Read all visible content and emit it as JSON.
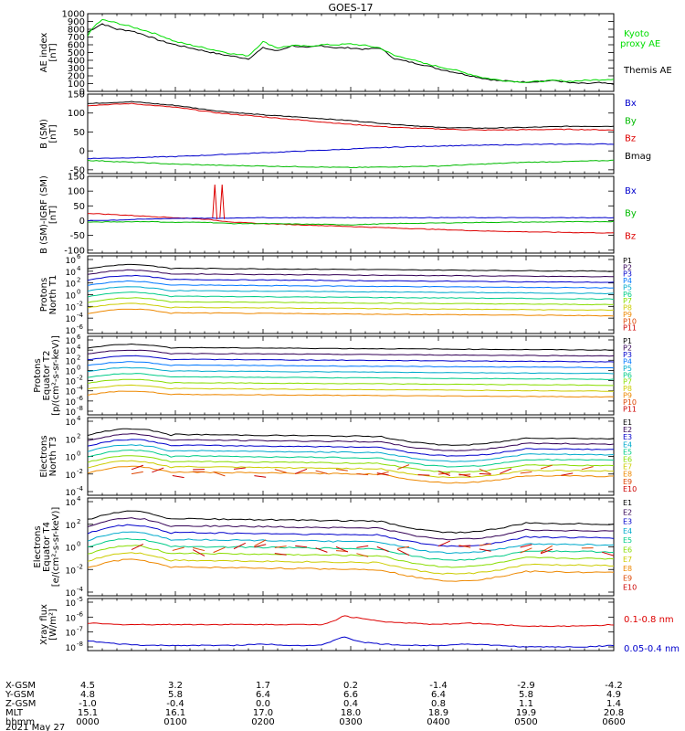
{
  "title": "GOES-17",
  "chart_data": [
    {
      "panel": "ae",
      "type": "line",
      "ylabel": [
        "AE index",
        "[nT]"
      ],
      "ylim": [
        0,
        1000
      ],
      "yticks": [
        "0",
        "100",
        "200",
        "300",
        "400",
        "500",
        "600",
        "700",
        "800",
        "900",
        "1000"
      ],
      "legend": [
        {
          "text": "Kyoto",
          "color": "#00dd00"
        },
        {
          "text": "proxy AE",
          "color": "#00dd00"
        },
        {
          "text": "Themis AE",
          "color": "#000000"
        }
      ],
      "x": [
        0,
        5,
        10,
        20,
        30,
        40,
        50,
        60,
        70,
        80,
        90,
        100,
        110,
        120,
        130,
        140,
        150,
        160,
        170,
        180,
        190,
        200,
        210,
        220,
        230,
        240,
        250,
        260,
        270,
        280,
        290,
        300,
        310,
        320,
        330,
        340,
        350,
        360
      ],
      "series": [
        {
          "name": "Themis AE",
          "color": "#000000",
          "values": [
            760,
            820,
            870,
            800,
            780,
            720,
            650,
            600,
            560,
            520,
            480,
            450,
            420,
            560,
            520,
            590,
            560,
            590,
            560,
            560,
            540,
            560,
            420,
            380,
            340,
            290,
            250,
            210,
            170,
            140,
            130,
            120,
            130,
            140,
            110,
            100,
            110,
            90
          ]
        },
        {
          "name": "Kyoto proxy AE",
          "color": "#00dd00",
          "values": [
            720,
            850,
            920,
            880,
            830,
            780,
            720,
            640,
            600,
            560,
            520,
            480,
            460,
            640,
            560,
            590,
            580,
            600,
            600,
            610,
            590,
            560,
            460,
            420,
            360,
            320,
            280,
            230,
            180,
            150,
            130,
            120,
            130,
            140,
            130,
            140,
            150,
            160
          ]
        }
      ]
    },
    {
      "panel": "bsm",
      "type": "line",
      "ylabel": [
        "B (SM)",
        "[nT]"
      ],
      "ylim": [
        -60,
        150
      ],
      "yticks": [
        "-50",
        "0",
        "50",
        "100",
        "150"
      ],
      "yticks_values": [
        -50,
        0,
        50,
        100,
        150
      ],
      "legend": [
        {
          "text": "Bx",
          "color": "#0000cc"
        },
        {
          "text": "By",
          "color": "#00bb00"
        },
        {
          "text": "Bz",
          "color": "#dd0000"
        },
        {
          "text": "Bmag",
          "color": "#000000"
        }
      ],
      "x": [
        0,
        30,
        60,
        90,
        120,
        150,
        180,
        210,
        240,
        270,
        300,
        330,
        360
      ],
      "series": [
        {
          "name": "Bmag",
          "color": "#000000",
          "values": [
            125,
            130,
            120,
            105,
            95,
            88,
            80,
            70,
            62,
            60,
            62,
            65,
            65
          ]
        },
        {
          "name": "Bz",
          "color": "#dd0000",
          "values": [
            120,
            125,
            115,
            100,
            90,
            80,
            70,
            62,
            58,
            55,
            56,
            57,
            55
          ]
        },
        {
          "name": "Bx",
          "color": "#0000cc",
          "values": [
            -20,
            -18,
            -15,
            -10,
            -5,
            0,
            5,
            10,
            13,
            15,
            17,
            18,
            18
          ]
        },
        {
          "name": "By",
          "color": "#00bb00",
          "values": [
            -25,
            -30,
            -35,
            -38,
            -40,
            -42,
            -44,
            -42,
            -40,
            -35,
            -30,
            -28,
            -25
          ]
        }
      ]
    },
    {
      "panel": "bmigrf",
      "type": "line",
      "ylabel": [
        "B (SM)-IGRF (SM)",
        "[nT]"
      ],
      "ylim": [
        -110,
        150
      ],
      "yticks": [
        "-100",
        "-50",
        "0",
        "50",
        "100",
        "150"
      ],
      "yticks_values": [
        -100,
        -50,
        0,
        50,
        100,
        150
      ],
      "legend": [
        {
          "text": "Bx",
          "color": "#0000cc"
        },
        {
          "text": "By",
          "color": "#00bb00"
        },
        {
          "text": "Bz",
          "color": "#dd0000"
        }
      ],
      "x": [
        0,
        20,
        40,
        60,
        80,
        90,
        100,
        110,
        120,
        150,
        180,
        210,
        240,
        270,
        300,
        330,
        360
      ],
      "series": [
        {
          "name": "Bz",
          "color": "#dd0000",
          "values": [
            25,
            20,
            15,
            10,
            5,
            0,
            -5,
            -8,
            -10,
            -15,
            -20,
            -25,
            -30,
            -35,
            -38,
            -40,
            -42
          ]
        },
        {
          "name": "Bx",
          "color": "#0000cc",
          "values": [
            0,
            2,
            5,
            8,
            8,
            8,
            9,
            10,
            10,
            10,
            10,
            10,
            10,
            10,
            10,
            10,
            10
          ]
        },
        {
          "name": "By",
          "color": "#00bb00",
          "values": [
            -5,
            -4,
            -3,
            -6,
            -5,
            -8,
            -10,
            -10,
            -10,
            -12,
            -14,
            -10,
            -8,
            -6,
            -5,
            -4,
            -3
          ]
        }
      ]
    },
    {
      "panel": "protons_t1",
      "type": "line",
      "ylabel": [
        "Protons",
        "North T1"
      ],
      "yticks": [
        "10",
        "10",
        "10",
        "10",
        "10",
        "10",
        "10"
      ],
      "yexp": [
        "-6",
        "-4",
        "-2",
        "0",
        "2",
        "4",
        "6"
      ],
      "legend": [
        {
          "text": "P1",
          "color": "#000000"
        },
        {
          "text": "P2",
          "color": "#330055"
        },
        {
          "text": "P3",
          "color": "#0000cc"
        },
        {
          "text": "P4",
          "color": "#0077ff"
        },
        {
          "text": "P5",
          "color": "#00aacc"
        },
        {
          "text": "P6",
          "color": "#00cc88"
        },
        {
          "text": "P7",
          "color": "#88dd00"
        },
        {
          "text": "P8",
          "color": "#cccc00"
        },
        {
          "text": "P9",
          "color": "#ee8800"
        },
        {
          "text": "P10",
          "color": "#dd4400"
        },
        {
          "text": "P11",
          "color": "#cc0000"
        }
      ]
    },
    {
      "panel": "protons_t2",
      "type": "line",
      "ylabel": [
        "Protons",
        "Equator T2",
        "[p/(cm²-s-sr-keV)]"
      ],
      "yticks": [
        "10",
        "10",
        "10",
        "10",
        "10",
        "10",
        "10",
        "10"
      ],
      "yexp": [
        "-8",
        "-6",
        "-4",
        "-2",
        "0",
        "2",
        "4",
        "6"
      ],
      "legend": [
        {
          "text": "P1",
          "color": "#000000"
        },
        {
          "text": "P2",
          "color": "#330055"
        },
        {
          "text": "P3",
          "color": "#0000cc"
        },
        {
          "text": "P4",
          "color": "#0077ff"
        },
        {
          "text": "P5",
          "color": "#00aacc"
        },
        {
          "text": "P6",
          "color": "#00cc88"
        },
        {
          "text": "P7",
          "color": "#88dd00"
        },
        {
          "text": "P8",
          "color": "#cccc00"
        },
        {
          "text": "P9",
          "color": "#ee8800"
        },
        {
          "text": "P10",
          "color": "#dd4400"
        },
        {
          "text": "P11",
          "color": "#cc0000"
        }
      ]
    },
    {
      "panel": "electrons_t3",
      "type": "line",
      "ylabel": [
        "Electrons",
        "North T3"
      ],
      "yticks": [
        "10",
        "10",
        "10",
        "10",
        "10"
      ],
      "yexp": [
        "-4",
        "-2",
        "0",
        "2",
        "4"
      ],
      "legend": [
        {
          "text": "E1",
          "color": "#000000"
        },
        {
          "text": "E2",
          "color": "#330055"
        },
        {
          "text": "E3",
          "color": "#0000cc"
        },
        {
          "text": "E4",
          "color": "#00aacc"
        },
        {
          "text": "E5",
          "color": "#00cc88"
        },
        {
          "text": "E6",
          "color": "#88dd00"
        },
        {
          "text": "E7",
          "color": "#cccc00"
        },
        {
          "text": "E8",
          "color": "#ee8800"
        },
        {
          "text": "E9",
          "color": "#dd4400"
        },
        {
          "text": "E10",
          "color": "#cc0000"
        }
      ]
    },
    {
      "panel": "electrons_t4",
      "type": "line",
      "ylabel": [
        "Electrons",
        "Equator T4",
        "[e/(cm²-s-sr-keV)]"
      ],
      "yticks": [
        "10",
        "10",
        "10",
        "10",
        "10"
      ],
      "yexp": [
        "-4",
        "-2",
        "0",
        "2",
        "4"
      ],
      "legend": [
        {
          "text": "E1",
          "color": "#000000"
        },
        {
          "text": "E2",
          "color": "#330055"
        },
        {
          "text": "E3",
          "color": "#0000cc"
        },
        {
          "text": "E4",
          "color": "#00aacc"
        },
        {
          "text": "E5",
          "color": "#00cc88"
        },
        {
          "text": "E6",
          "color": "#88dd00"
        },
        {
          "text": "E7",
          "color": "#cccc00"
        },
        {
          "text": "E8",
          "color": "#ee8800"
        },
        {
          "text": "E9",
          "color": "#dd4400"
        },
        {
          "text": "E10",
          "color": "#cc0000"
        }
      ]
    },
    {
      "panel": "xray",
      "type": "line",
      "ylabel": [
        "Xray flux",
        "[W/m²]"
      ],
      "yticks": [
        "10",
        "10",
        "10",
        "10"
      ],
      "yexp": [
        "-8",
        "-7",
        "-6",
        "-5"
      ],
      "legend": [
        {
          "text": "0.1-0.8 nm",
          "color": "#dd0000"
        },
        {
          "text": "0.05-0.4 nm",
          "color": "#0000cc"
        }
      ],
      "x": [
        0,
        20,
        40,
        60,
        80,
        100,
        120,
        140,
        160,
        170,
        175,
        180,
        190,
        200,
        220,
        240,
        260,
        280,
        300,
        320,
        340,
        360
      ],
      "series": [
        {
          "name": "0.1-0.8 nm",
          "color": "#dd0000",
          "values": [
            -6.4,
            -6.5,
            -6.5,
            -6.5,
            -6.5,
            -6.5,
            -6.5,
            -6.5,
            -6.5,
            -6.2,
            -5.9,
            -6.0,
            -6.1,
            -6.3,
            -6.4,
            -6.5,
            -6.4,
            -6.5,
            -6.6,
            -6.6,
            -6.6,
            -6.5
          ]
        },
        {
          "name": "0.05-0.4 nm",
          "color": "#0000cc",
          "values": [
            -7.6,
            -7.8,
            -7.9,
            -7.9,
            -7.9,
            -7.9,
            -7.8,
            -7.9,
            -7.9,
            -7.5,
            -7.3,
            -7.5,
            -7.7,
            -7.8,
            -7.9,
            -7.9,
            -7.8,
            -7.9,
            -8.0,
            -8.0,
            -8.0,
            -7.9
          ]
        }
      ]
    }
  ],
  "xaxis": {
    "row_labels": [
      "X-GSM",
      "Y-GSM",
      "Z-GSM",
      "MLT",
      "hhmm"
    ],
    "date": "2021 May 27",
    "columns": [
      {
        "X-GSM": "4.5",
        "Y-GSM": "4.8",
        "Z-GSM": "-1.0",
        "MLT": "15.1",
        "hhmm": "0000"
      },
      {
        "X-GSM": "3.2",
        "Y-GSM": "5.8",
        "Z-GSM": "-0.4",
        "MLT": "16.1",
        "hhmm": "0100"
      },
      {
        "X-GSM": "1.7",
        "Y-GSM": "6.4",
        "Z-GSM": "0.0",
        "MLT": "17.0",
        "hhmm": "0200"
      },
      {
        "X-GSM": "0.2",
        "Y-GSM": "6.6",
        "Z-GSM": "0.4",
        "MLT": "18.0",
        "hhmm": "0300"
      },
      {
        "X-GSM": "-1.4",
        "Y-GSM": "6.4",
        "Z-GSM": "0.8",
        "MLT": "18.9",
        "hhmm": "0400"
      },
      {
        "X-GSM": "-2.9",
        "Y-GSM": "5.8",
        "Z-GSM": "1.1",
        "MLT": "19.9",
        "hhmm": "0500"
      },
      {
        "X-GSM": "-4.2",
        "Y-GSM": "4.9",
        "Z-GSM": "1.4",
        "MLT": "20.8",
        "hhmm": "0600"
      }
    ]
  }
}
